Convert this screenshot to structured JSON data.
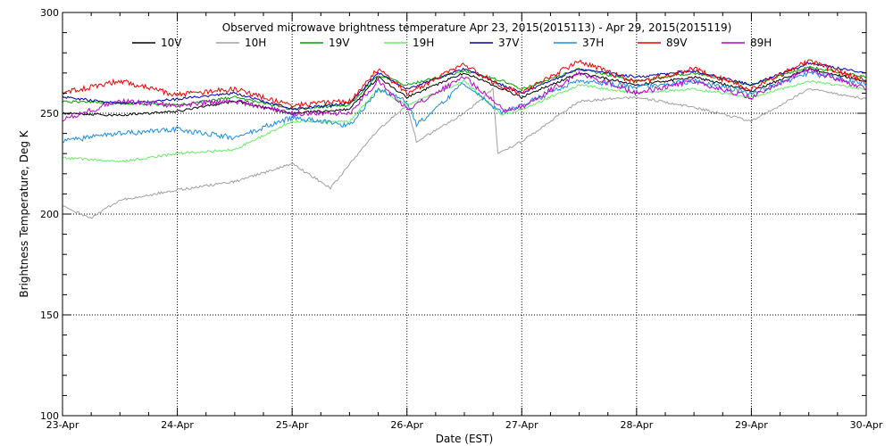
{
  "chart_data": {
    "type": "line",
    "title": "Observed microwave brightness temperature Apr 23, 2015(2015113) - Apr 29, 2015(2015119)",
    "xlabel": "Date (EST)",
    "ylabel": "Brightness Temperature, Deg K",
    "xlim": [
      "2015-04-23",
      "2015-04-30"
    ],
    "ylim": [
      100,
      300
    ],
    "x_ticks": [
      "23-Apr",
      "24-Apr",
      "25-Apr",
      "26-Apr",
      "27-Apr",
      "28-Apr",
      "29-Apr",
      "30-Apr"
    ],
    "y_ticks": [
      "100",
      "150",
      "200",
      "250",
      "300"
    ],
    "grid": "dotted",
    "legend_position": "top",
    "series": [
      {
        "name": "10V",
        "color": "#000000",
        "x": [
          "2015-04-23 00:00",
          "2015-04-23 12:00",
          "2015-04-24 00:00",
          "2015-04-24 12:00",
          "2015-04-25 00:00",
          "2015-04-25 12:00",
          "2015-04-25 18:00",
          "2015-04-26 00:00",
          "2015-04-26 12:00",
          "2015-04-26 20:00",
          "2015-04-27 00:00",
          "2015-04-27 12:00",
          "2015-04-28 00:00",
          "2015-04-28 12:00",
          "2015-04-29 00:00",
          "2015-04-29 12:00",
          "2015-04-30 00:00"
        ],
        "values": [
          250,
          249,
          251,
          256,
          250,
          252,
          268,
          258,
          270,
          262,
          258,
          270,
          264,
          268,
          261,
          272,
          266
        ]
      },
      {
        "name": "10H",
        "color": "#a0a0a0",
        "x": [
          "2015-04-23 00:00",
          "2015-04-23 06:00",
          "2015-04-23 12:00",
          "2015-04-24 00:00",
          "2015-04-24 12:00",
          "2015-04-25 00:00",
          "2015-04-25 08:00",
          "2015-04-25 18:00",
          "2015-04-26 00:00",
          "2015-04-26 02:00",
          "2015-04-26 12:00",
          "2015-04-26 18:00",
          "2015-04-26 19:00",
          "2015-04-27 00:00",
          "2015-04-27 12:00",
          "2015-04-28 00:00",
          "2015-04-28 12:00",
          "2015-04-29 00:00",
          "2015-04-29 12:00",
          "2015-04-30 00:00"
        ],
        "values": [
          204,
          198,
          207,
          212,
          216,
          225,
          213,
          242,
          254,
          236,
          250,
          262,
          230,
          236,
          256,
          258,
          253,
          246,
          262,
          257
        ]
      },
      {
        "name": "19V",
        "color": "#00a000",
        "x": [
          "2015-04-23 00:00",
          "2015-04-23 12:00",
          "2015-04-24 00:00",
          "2015-04-24 12:00",
          "2015-04-25 00:00",
          "2015-04-25 12:00",
          "2015-04-25 18:00",
          "2015-04-26 00:00",
          "2015-04-26 12:00",
          "2015-04-26 20:00",
          "2015-04-27 00:00",
          "2015-04-27 12:00",
          "2015-04-28 00:00",
          "2015-04-28 12:00",
          "2015-04-29 00:00",
          "2015-04-29 12:00",
          "2015-04-30 00:00"
        ],
        "values": [
          256,
          255,
          254,
          258,
          252,
          254,
          269,
          264,
          271,
          266,
          262,
          272,
          266,
          270,
          264,
          273,
          268
        ]
      },
      {
        "name": "19H",
        "color": "#66ee66",
        "x": [
          "2015-04-23 00:00",
          "2015-04-23 12:00",
          "2015-04-24 00:00",
          "2015-04-24 12:00",
          "2015-04-25 00:00",
          "2015-04-25 12:00",
          "2015-04-25 18:00",
          "2015-04-26 00:00",
          "2015-04-26 12:00",
          "2015-04-26 20:00",
          "2015-04-27 00:00",
          "2015-04-27 12:00",
          "2015-04-28 00:00",
          "2015-04-28 12:00",
          "2015-04-29 00:00",
          "2015-04-29 12:00",
          "2015-04-30 00:00"
        ],
        "values": [
          228,
          226,
          230,
          232,
          246,
          246,
          262,
          254,
          266,
          249,
          252,
          264,
          260,
          262,
          258,
          266,
          262
        ]
      },
      {
        "name": "37V",
        "color": "#0000aa",
        "x": [
          "2015-04-23 00:00",
          "2015-04-23 12:00",
          "2015-04-24 00:00",
          "2015-04-24 12:00",
          "2015-04-25 00:00",
          "2015-04-25 12:00",
          "2015-04-25 18:00",
          "2015-04-26 00:00",
          "2015-04-26 12:00",
          "2015-04-26 20:00",
          "2015-04-27 00:00",
          "2015-04-27 12:00",
          "2015-04-28 00:00",
          "2015-04-28 12:00",
          "2015-04-29 00:00",
          "2015-04-29 12:00",
          "2015-04-30 00:00"
        ],
        "values": [
          258,
          255,
          257,
          260,
          252,
          255,
          270,
          262,
          272,
          264,
          260,
          272,
          268,
          271,
          264,
          275,
          270
        ]
      },
      {
        "name": "37H",
        "color": "#1c8ce0",
        "x": [
          "2015-04-23 00:00",
          "2015-04-23 12:00",
          "2015-04-24 00:00",
          "2015-04-24 12:00",
          "2015-04-25 00:00",
          "2015-04-25 12:00",
          "2015-04-25 18:00",
          "2015-04-26 00:00",
          "2015-04-26 02:00",
          "2015-04-26 12:00",
          "2015-04-26 20:00",
          "2015-04-27 00:00",
          "2015-04-27 12:00",
          "2015-04-28 00:00",
          "2015-04-28 12:00",
          "2015-04-29 00:00",
          "2015-04-29 12:00",
          "2015-04-30 00:00"
        ],
        "values": [
          236,
          240,
          242,
          238,
          248,
          244,
          262,
          256,
          244,
          265,
          250,
          254,
          266,
          263,
          266,
          260,
          270,
          265
        ]
      },
      {
        "name": "89V",
        "color": "#ee0000",
        "x": [
          "2015-04-23 00:00",
          "2015-04-23 12:00",
          "2015-04-24 00:00",
          "2015-04-24 12:00",
          "2015-04-25 00:00",
          "2015-04-25 12:00",
          "2015-04-25 18:00",
          "2015-04-26 00:00",
          "2015-04-26 12:00",
          "2015-04-26 20:00",
          "2015-04-27 00:00",
          "2015-04-27 12:00",
          "2015-04-28 00:00",
          "2015-04-28 12:00",
          "2015-04-29 00:00",
          "2015-04-29 12:00",
          "2015-04-30 00:00"
        ],
        "values": [
          260,
          266,
          259,
          262,
          254,
          256,
          272,
          260,
          274,
          263,
          260,
          276,
          265,
          272,
          262,
          276,
          266
        ]
      },
      {
        "name": "89H",
        "color": "#bb00cc",
        "x": [
          "2015-04-23 00:00",
          "2015-04-23 12:00",
          "2015-04-24 00:00",
          "2015-04-24 12:00",
          "2015-04-25 00:00",
          "2015-04-25 12:00",
          "2015-04-25 18:00",
          "2015-04-26 00:00",
          "2015-04-26 12:00",
          "2015-04-26 20:00",
          "2015-04-27 00:00",
          "2015-04-27 12:00",
          "2015-04-28 00:00",
          "2015-04-28 12:00",
          "2015-04-29 00:00",
          "2015-04-29 12:00",
          "2015-04-30 00:00"
        ],
        "values": [
          247,
          256,
          254,
          256,
          250,
          250,
          266,
          252,
          268,
          252,
          253,
          270,
          260,
          266,
          258,
          272,
          262
        ]
      }
    ]
  }
}
